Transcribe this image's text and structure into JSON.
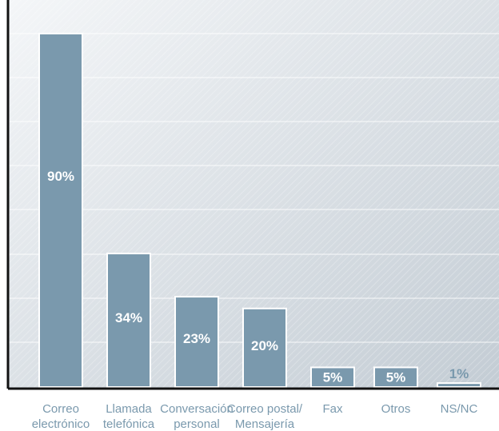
{
  "chart_data": {
    "type": "bar",
    "categories": [
      [
        "Correo",
        "electrónico"
      ],
      [
        "Llamada",
        "telefónica"
      ],
      [
        "Conversación",
        "personal"
      ],
      [
        "Correo postal/",
        "Mensajería"
      ],
      [
        "Fax"
      ],
      [
        "Otros"
      ],
      [
        "NS/NC"
      ]
    ],
    "values": [
      90,
      34,
      23,
      20,
      5,
      5,
      1
    ],
    "data_labels": [
      "90%",
      "34%",
      "23%",
      "20%",
      "5%",
      "5%",
      "1%"
    ],
    "ylim": [
      0,
      90
    ],
    "grid": true,
    "title": "",
    "xlabel": "",
    "ylabel": ""
  },
  "colors": {
    "bar": "#7a99ad",
    "bar_border": "#ffffff",
    "plot_bg_light": "#f4f6f8",
    "plot_bg_dark": "#c3ccd4",
    "gridline": "#ffffff",
    "frame": "#111111",
    "label_inside": "#ffffff",
    "label_outside": "#7a99ad",
    "category_text": "#7a99ad"
  }
}
